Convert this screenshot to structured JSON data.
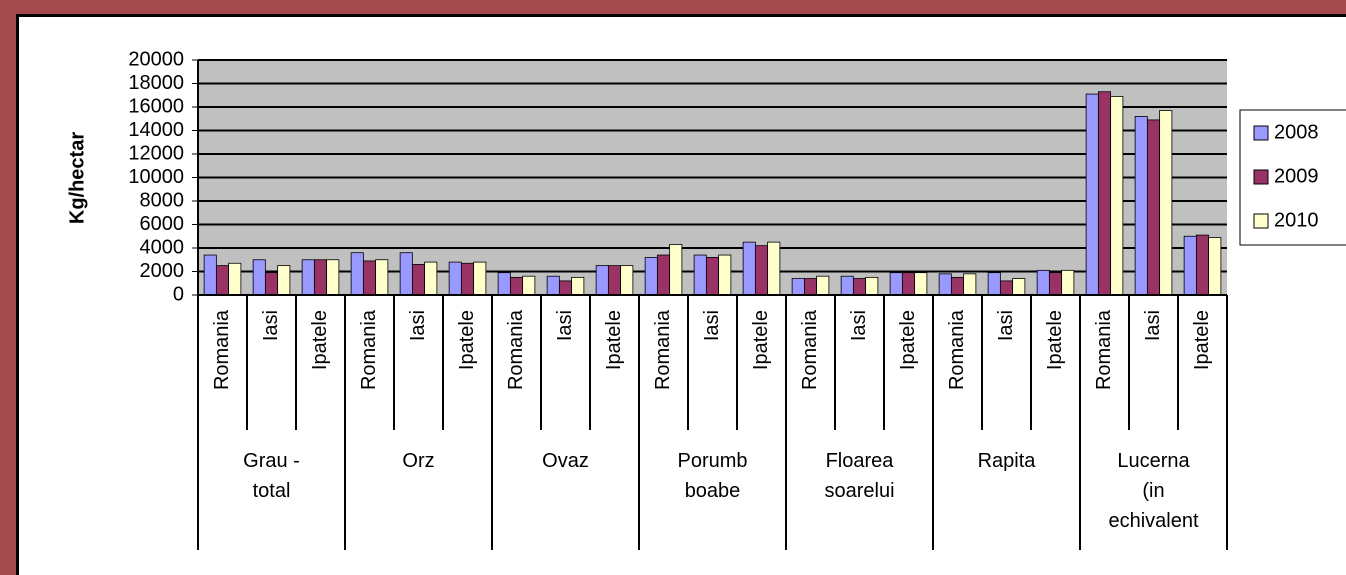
{
  "chart_data": {
    "type": "bar",
    "y_label": "Kg/hectar",
    "groups": [
      "Grau - total",
      "Orz",
      "Ovaz",
      "Porumb boabe",
      "Floarea soarelui",
      "Rapita",
      "Lucerna (in echivalent"
    ],
    "categories": [
      "Romania",
      "Iasi",
      "Ipatele",
      "Romania",
      "Iasi",
      "Ipatele",
      "Romania",
      "Iasi",
      "Ipatele",
      "Romania",
      "Iasi",
      "Ipatele",
      "Romania",
      "Iasi",
      "Ipatele",
      "Romania",
      "Iasi",
      "Ipatele",
      "Romania",
      "Iasi",
      "Ipatele"
    ],
    "series": [
      {
        "name": "2008",
        "color": "#9999ff",
        "values": [
          3400,
          3000,
          3000,
          3600,
          3600,
          2800,
          1900,
          1600,
          2500,
          3200,
          3400,
          4500,
          1400,
          1600,
          1900,
          1800,
          1900,
          2100,
          17100,
          15200,
          5000
        ]
      },
      {
        "name": "2009",
        "color": "#993366",
        "values": [
          2500,
          1900,
          3000,
          2900,
          2600,
          2700,
          1500,
          1200,
          2500,
          3400,
          3200,
          4200,
          1400,
          1400,
          1900,
          1500,
          1200,
          1900,
          17300,
          14900,
          5100
        ]
      },
      {
        "name": "2010",
        "color": "#ffffcc",
        "values": [
          2700,
          2500,
          3000,
          3000,
          2800,
          2800,
          1600,
          1500,
          2500,
          4300,
          3400,
          4500,
          1600,
          1500,
          1900,
          1800,
          1400,
          2100,
          16900,
          15700,
          4900
        ]
      }
    ],
    "ylim": [
      0,
      20000
    ],
    "yticks": [
      0,
      2000,
      4000,
      6000,
      8000,
      10000,
      12000,
      14000,
      16000,
      18000,
      20000
    ],
    "grid": true,
    "legend": "right"
  }
}
